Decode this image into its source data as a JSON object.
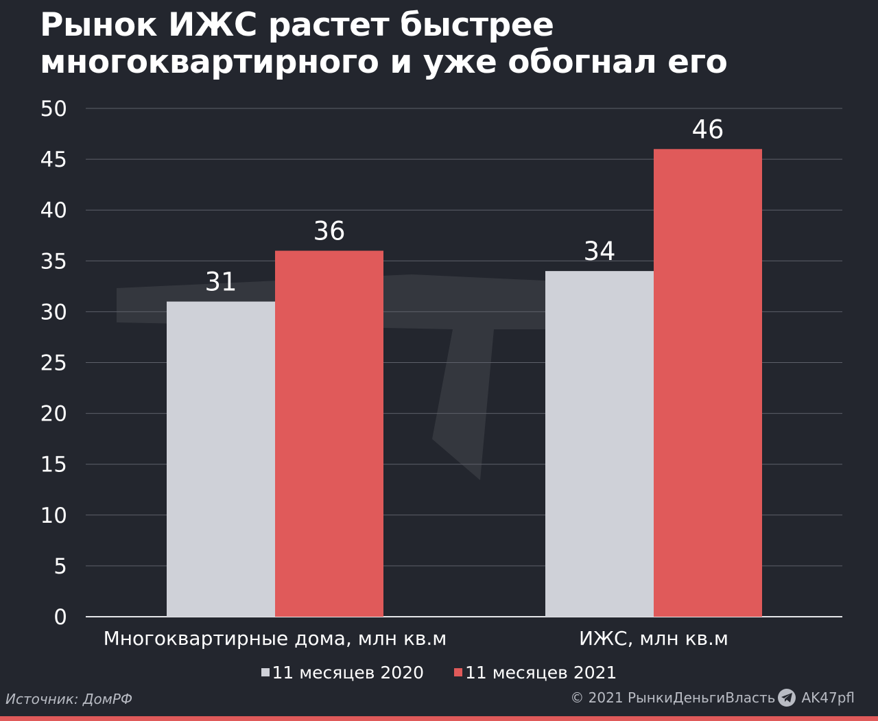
{
  "title_lines": [
    "Рынок ИЖС растет быстрее",
    "многоквартирного и уже обогнал его"
  ],
  "chart_data": {
    "type": "bar",
    "title": "Рынок ИЖС растет быстрее многоквартирного и уже обогнал его",
    "categories": [
      "Многоквартирные дома, млн кв.м",
      "ИЖС, млн кв.м"
    ],
    "series": [
      {
        "name": "11 месяцев 2020",
        "values": [
          31,
          34
        ],
        "color": "#cfd1d8"
      },
      {
        "name": "11 месяцев 2021",
        "values": [
          36,
          46
        ],
        "color": "#e05a5a"
      }
    ],
    "data_labels": [
      [
        "31",
        "34"
      ],
      [
        "36",
        "46"
      ]
    ],
    "ylim": [
      0,
      50
    ],
    "yticks": [
      0,
      5,
      10,
      15,
      20,
      25,
      30,
      35,
      40,
      45,
      50
    ],
    "ytick_labels": [
      "0",
      "5",
      "10",
      "15",
      "20",
      "25",
      "30",
      "35",
      "40",
      "45",
      "50"
    ],
    "grid": true,
    "legend_position": "bottom-center"
  },
  "legend": {
    "item1": "11 месяцев 2020",
    "item2": "11 месяцев 2021",
    "color1": "#cfd1d8",
    "color2": "#e05a5a"
  },
  "footer": {
    "source": "Источник: ДомРФ",
    "copyright": "© 2021  РынкиДеньгиВласть",
    "handle": "AK47pfl",
    "icon": "telegram-icon"
  },
  "colors": {
    "background": "#23262e",
    "accent": "#e05a5a",
    "grid": "#5e616a"
  }
}
